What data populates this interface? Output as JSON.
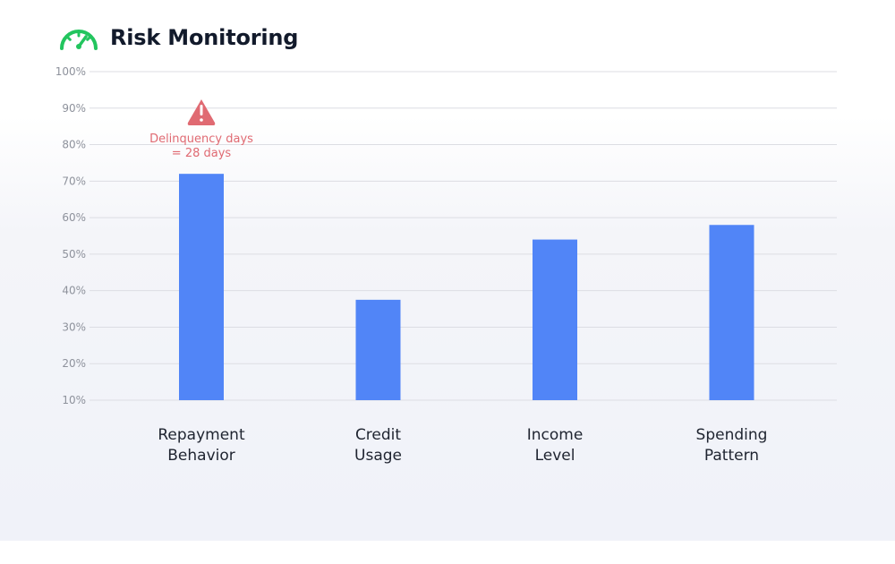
{
  "header": {
    "title": "Risk Monitoring",
    "icon": "gauge-icon",
    "icon_color": "#22c55e"
  },
  "chart_data": {
    "type": "bar",
    "categories": [
      [
        "Repayment",
        "Behavior"
      ],
      [
        "Credit",
        "Usage"
      ],
      [
        "Income",
        "Level"
      ],
      [
        "Spending",
        "Pattern"
      ]
    ],
    "values": [
      72,
      37.5,
      54,
      58
    ],
    "ylim": [
      10,
      100
    ],
    "yticks": [
      "10%",
      "20%",
      "30%",
      "40%",
      "50%",
      "60%",
      "70%",
      "80%",
      "90%",
      "100%"
    ],
    "bar_color": "#5185f7",
    "grid": true,
    "annotation": {
      "category_index": 0,
      "icon": "warning-icon",
      "color": "#e06a72",
      "lines": [
        "Delinquency days",
        "=  28 days"
      ]
    }
  }
}
